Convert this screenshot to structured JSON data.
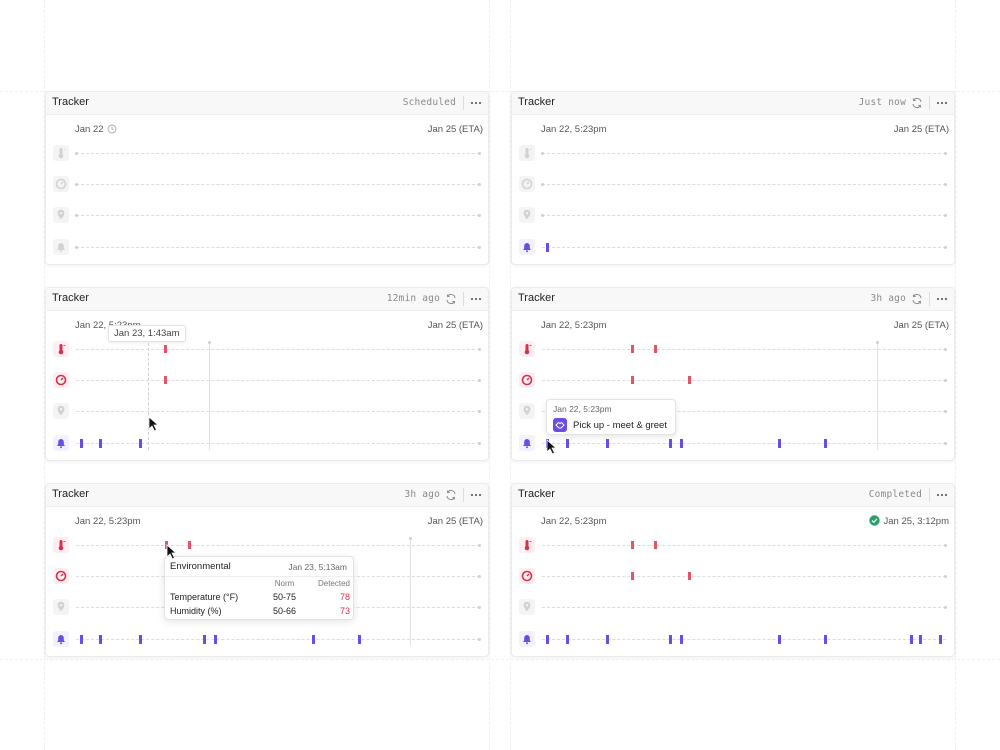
{
  "colors": {
    "env_event": "#e4536a",
    "location_event": "#6c4ce8",
    "completed": "#2e9e6c",
    "muted": "#8a8a8a"
  },
  "row_icons": [
    "thermometer-icon",
    "gauge-icon",
    "location-pin-icon",
    "bell-icon"
  ],
  "cards": [
    {
      "title": "Tracker",
      "status": "Scheduled",
      "start_date": "Jan 22",
      "end_date": "Jan 25 (ETA)"
    },
    {
      "title": "Tracker",
      "status": "Just now",
      "start_date": "Jan 22, 5:23pm",
      "end_date": "Jan 25 (ETA)"
    },
    {
      "title": "Tracker",
      "status": "12min ago",
      "start_date": "Jan 22, 5:23pm",
      "end_date": "Jan 25 (ETA)",
      "hover_label": "Jan 23, 1:43am"
    },
    {
      "title": "Tracker",
      "status": "3h ago",
      "start_date": "Jan 22, 5:23pm",
      "end_date": "Jan 25 (ETA)",
      "tooltip": {
        "date": "Jan 22, 5:23pm",
        "text": "Pick up - meet & greet"
      }
    },
    {
      "title": "Tracker",
      "status": "3h ago",
      "start_date": "Jan 22, 5:23pm",
      "end_date": "Jan 25 (ETA)",
      "env_tooltip": {
        "title": "Environmental",
        "date": "Jan 23, 5:13am",
        "col_norm": "Norm",
        "col_detected": "Detected",
        "rows": [
          {
            "label": "Temperature (°F)",
            "norm": "50-75",
            "detected": "78"
          },
          {
            "label": "Humidity (%)",
            "norm": "50-66",
            "detected": "73"
          }
        ]
      }
    },
    {
      "title": "Tracker",
      "status": "Completed",
      "start_date": "Jan 22, 5:23pm",
      "end_date": "Jan 25, 3:12pm"
    }
  ]
}
